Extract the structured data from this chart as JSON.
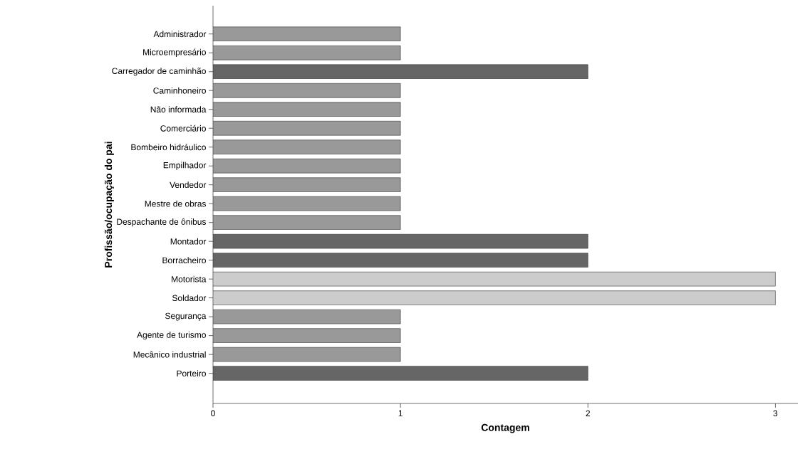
{
  "chart_data": {
    "type": "bar",
    "orientation": "horizontal",
    "xlabel": "Contagem",
    "ylabel": "Profissão/ocupação do pai",
    "categories": [
      "Administrador",
      "Microempresário",
      "Carregador de caminhão",
      "Caminhoneiro",
      "Não informada",
      "Comerciário",
      "Bombeiro hidráulico",
      "Empilhador",
      "Vendedor",
      "Mestre de obras",
      "Despachante de ônibus",
      "Montador",
      "Borracheiro",
      "Motorista",
      "Soldador",
      "Segurança",
      "Agente de turismo",
      "Mecânico industrial",
      "Porteiro"
    ],
    "values": [
      1,
      1,
      2,
      1,
      1,
      1,
      1,
      1,
      1,
      1,
      1,
      2,
      2,
      3,
      3,
      1,
      1,
      1,
      2
    ],
    "colors": [
      "#999999",
      "#999999",
      "#666666",
      "#999999",
      "#999999",
      "#999999",
      "#999999",
      "#999999",
      "#999999",
      "#999999",
      "#999999",
      "#666666",
      "#666666",
      "#cccccc",
      "#cccccc",
      "#999999",
      "#999999",
      "#999999",
      "#666666"
    ],
    "xlim": [
      0,
      3.12
    ],
    "xticks": [
      0,
      1,
      2,
      3
    ],
    "grid": false
  }
}
